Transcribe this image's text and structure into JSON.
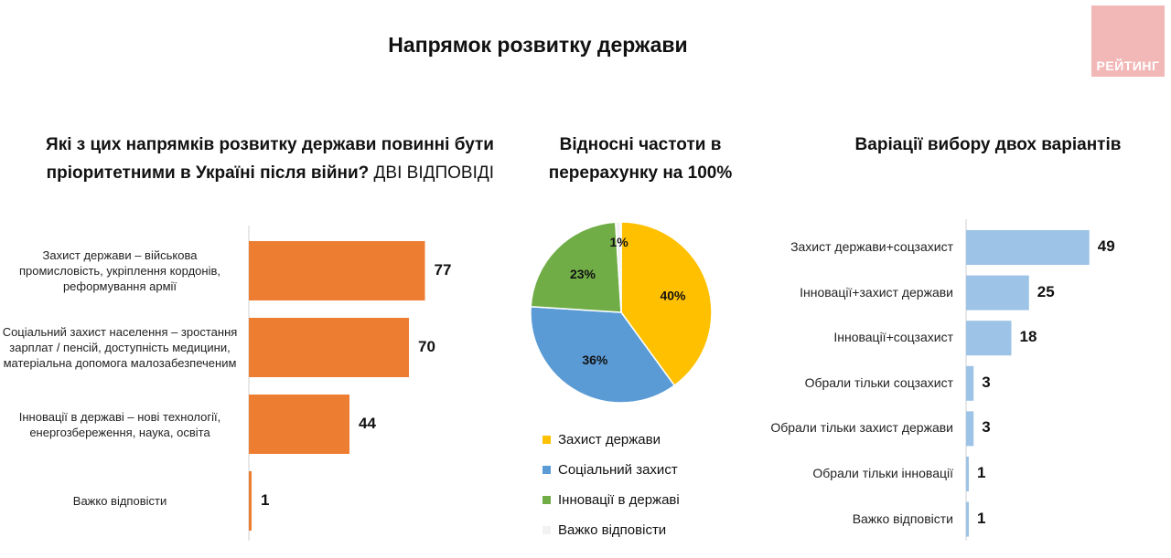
{
  "main_title": "Напрямок розвитку держави",
  "logo_text": "РЕЙТИНГ",
  "colors": {
    "orange": "#ed7d31",
    "light_blue": "#9dc3e6",
    "pie_yellow": "#ffc000",
    "pie_blue": "#5b9bd5",
    "pie_green": "#70ad47",
    "pie_white": "#f2f2f2",
    "logo_bg": "#f2b8b8"
  },
  "chart_data": [
    {
      "type": "bar",
      "orientation": "horizontal",
      "title": "Які з цих напрямків розвитку держави повинні бути пріоритетними в Україні після війни?",
      "title_suffix": "ДВІ ВІДПОВІДІ",
      "categories": [
        "Захист держави – військова промисловість, укріплення кордонів, реформування армії",
        "Соціальний захист населення – зростання зарплат / пенсій, доступність медицини, матеріальна допомога малозабезпеченим",
        "Інновації в державі – нові технології, енергозбереження, наука, освіта",
        "Важко відповісти"
      ],
      "values": [
        77,
        70,
        44,
        1
      ],
      "xlim": [
        0,
        100
      ],
      "color": "#ed7d31"
    },
    {
      "type": "pie",
      "title": "Відносні частоти в перерахунку на 100%",
      "labels": [
        "Захист держави",
        "Соціальний захист",
        "Інновації в державі",
        "Важко відповісти"
      ],
      "values": [
        40,
        36,
        23,
        1
      ],
      "value_labels": [
        "40%",
        "36%",
        "23%",
        "1%"
      ],
      "colors": [
        "#ffc000",
        "#5b9bd5",
        "#70ad47",
        "#f2f2f2"
      ],
      "legend_position": "bottom"
    },
    {
      "type": "bar",
      "orientation": "horizontal",
      "title": "Варіації вибору двох варіантів",
      "categories": [
        "Захист держави+соцзахист",
        "Інновації+захист держави",
        "Інновації+соцзахист",
        "Обрали тільки соцзахист",
        "Обрали тільки захист держави",
        "Обрали тільки інновації",
        "Важко відповісти"
      ],
      "values": [
        49,
        25,
        18,
        3,
        3,
        1,
        1
      ],
      "xlim": [
        0,
        100
      ],
      "color": "#9dc3e6"
    }
  ]
}
